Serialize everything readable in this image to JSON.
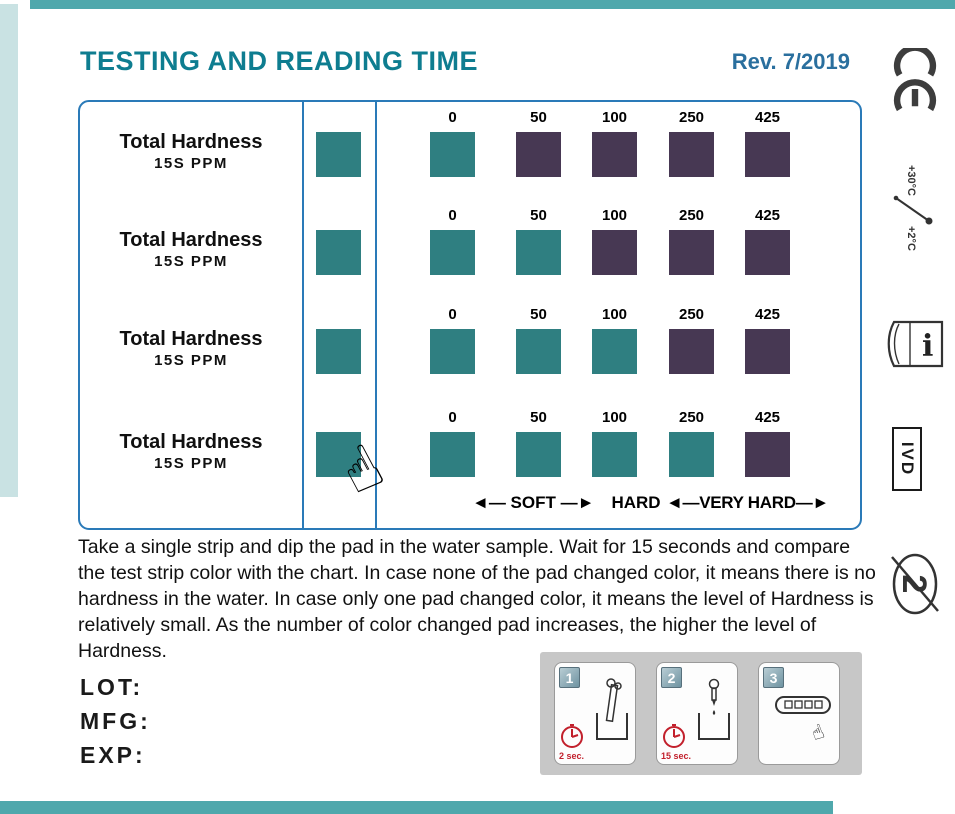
{
  "header": {
    "title": "TESTING AND READING TIME",
    "revision": "Rev. 7/2019"
  },
  "chart": {
    "row_label": "Total Hardness",
    "row_sublabel": "15S PPM",
    "scale_values": [
      "0",
      "50",
      "100",
      "250",
      "425"
    ],
    "pad_palette": {
      "teal": "#2f7f81",
      "purple": "#473853"
    },
    "strip_pad_color": "teal",
    "rows": [
      [
        "teal",
        "purple",
        "purple",
        "purple",
        "purple"
      ],
      [
        "teal",
        "teal",
        "purple",
        "purple",
        "purple"
      ],
      [
        "teal",
        "teal",
        "teal",
        "purple",
        "purple"
      ],
      [
        "teal",
        "teal",
        "teal",
        "teal",
        "purple"
      ]
    ],
    "range_labels": {
      "soft": "◄— SOFT —►",
      "hard": "HARD",
      "very_hard": "◄—VERY HARD—►"
    },
    "border_color": "#2a7ab8"
  },
  "instructions": "Take a single strip and dip the pad in the water sample. Wait for 15 seconds and compare the test strip color with the chart. In case none of the pad changed color, it means there is no hardness in the water. In case only one pad changed color, it means the level of Hardness is relatively small. As the number of color changed pad increases, the higher the level of Hardness.",
  "lot_block": {
    "lot": "LOT:",
    "mfg": "MFG:",
    "exp": "EXP:"
  },
  "steps": [
    {
      "number": "1",
      "time": "2 sec."
    },
    {
      "number": "2",
      "time": "15 sec."
    },
    {
      "number": "3",
      "time": ""
    }
  ],
  "side_symbols": {
    "ce": "CE",
    "temp_high": "+30°C",
    "temp_low": "+2°C",
    "consult_ifu": "i",
    "ivd": "IVD",
    "no_reuse": "2"
  },
  "accent_colors": {
    "bar_teal": "#4fa8ac",
    "bar_pale": "#c9e2e3",
    "timer_red": "#c2202c"
  }
}
